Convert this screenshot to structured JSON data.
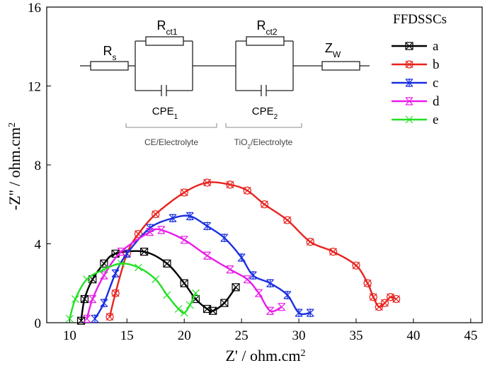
{
  "chart_data": {
    "type": "line",
    "xlabel": {
      "text": "Z' / ohm.cm",
      "sup": "2"
    },
    "ylabel": {
      "text": "-Z'' / ohm.cm",
      "sup": "2"
    },
    "xlim": [
      8,
      46
    ],
    "xticks": [
      10,
      15,
      20,
      25,
      30,
      35,
      40,
      45
    ],
    "ylim": [
      0,
      16
    ],
    "yticks": [
      0,
      4,
      8,
      12,
      16
    ],
    "legend": {
      "title": "FFDSSCs",
      "position": "upper right"
    },
    "series": [
      {
        "name": "a",
        "color": "#000000",
        "marker": "square-x",
        "x": [
          11,
          11.3,
          12,
          13,
          14,
          16.5,
          18.5,
          20,
          21,
          22,
          22.5,
          23.5,
          24.5
        ],
        "y": [
          0.1,
          1.2,
          2.2,
          3,
          3.5,
          3.6,
          3,
          2,
          1.2,
          0.7,
          0.6,
          1,
          1.8
        ]
      },
      {
        "name": "b",
        "color": "#e8231e",
        "marker": "circle-x",
        "x": [
          13.5,
          14,
          15,
          16,
          17.5,
          20,
          22,
          24,
          25.5,
          27,
          29,
          31,
          33,
          35,
          36,
          36.5,
          37,
          37.5,
          38,
          38.5
        ],
        "y": [
          0.3,
          1.5,
          3.5,
          4.5,
          5.5,
          6.6,
          7.1,
          7,
          6.7,
          6,
          5.2,
          4.1,
          3.6,
          2.9,
          2,
          1.3,
          0.8,
          1,
          1.3,
          1.2
        ]
      },
      {
        "name": "c",
        "color": "#1a2fe0",
        "marker": "star",
        "x": [
          12.2,
          13,
          14,
          15,
          17,
          19,
          20.5,
          22,
          23.5,
          25,
          26,
          27.5,
          29,
          30,
          31
        ],
        "y": [
          0.2,
          1,
          2.5,
          3.5,
          4.8,
          5.3,
          5.4,
          4.9,
          4.3,
          3.3,
          2.4,
          2,
          1.4,
          0.5,
          0.5
        ]
      },
      {
        "name": "d",
        "color": "#ea1cea",
        "marker": "x-bar",
        "x": [
          11.5,
          12,
          13,
          14.5,
          17,
          18,
          20,
          22,
          24,
          25.5,
          26.5,
          27.5,
          28.5
        ],
        "y": [
          0.2,
          1.2,
          2.4,
          3.6,
          4.6,
          4.7,
          4.2,
          3.4,
          2.7,
          2.2,
          1.5,
          0.6,
          0.8
        ]
      },
      {
        "name": "e",
        "color": "#22e022",
        "marker": "x",
        "x": [
          10,
          10.5,
          11.5,
          13,
          14.5,
          16,
          17.5,
          18.5,
          19.5,
          20,
          20.5,
          21
        ],
        "y": [
          0.2,
          1.2,
          2.2,
          2.7,
          3,
          2.8,
          2.2,
          1.4,
          0.7,
          0.5,
          0.9,
          1.5
        ]
      }
    ],
    "inset": {
      "rs": {
        "base": "R",
        "sub": "s"
      },
      "rct1": {
        "base": "R",
        "sub": "ct1"
      },
      "rct2": {
        "base": "R",
        "sub": "ct2"
      },
      "zw": {
        "base": "Z",
        "sub": "W"
      },
      "cpe1": {
        "base": "CPE",
        "sub": "1"
      },
      "cpe2": {
        "base": "CPE",
        "sub": "2"
      },
      "group1": {
        "base": "CE/Electrolyte"
      },
      "group2": {
        "base": "TiO",
        "sub": "2",
        "after": "/Electrolyte"
      }
    }
  }
}
